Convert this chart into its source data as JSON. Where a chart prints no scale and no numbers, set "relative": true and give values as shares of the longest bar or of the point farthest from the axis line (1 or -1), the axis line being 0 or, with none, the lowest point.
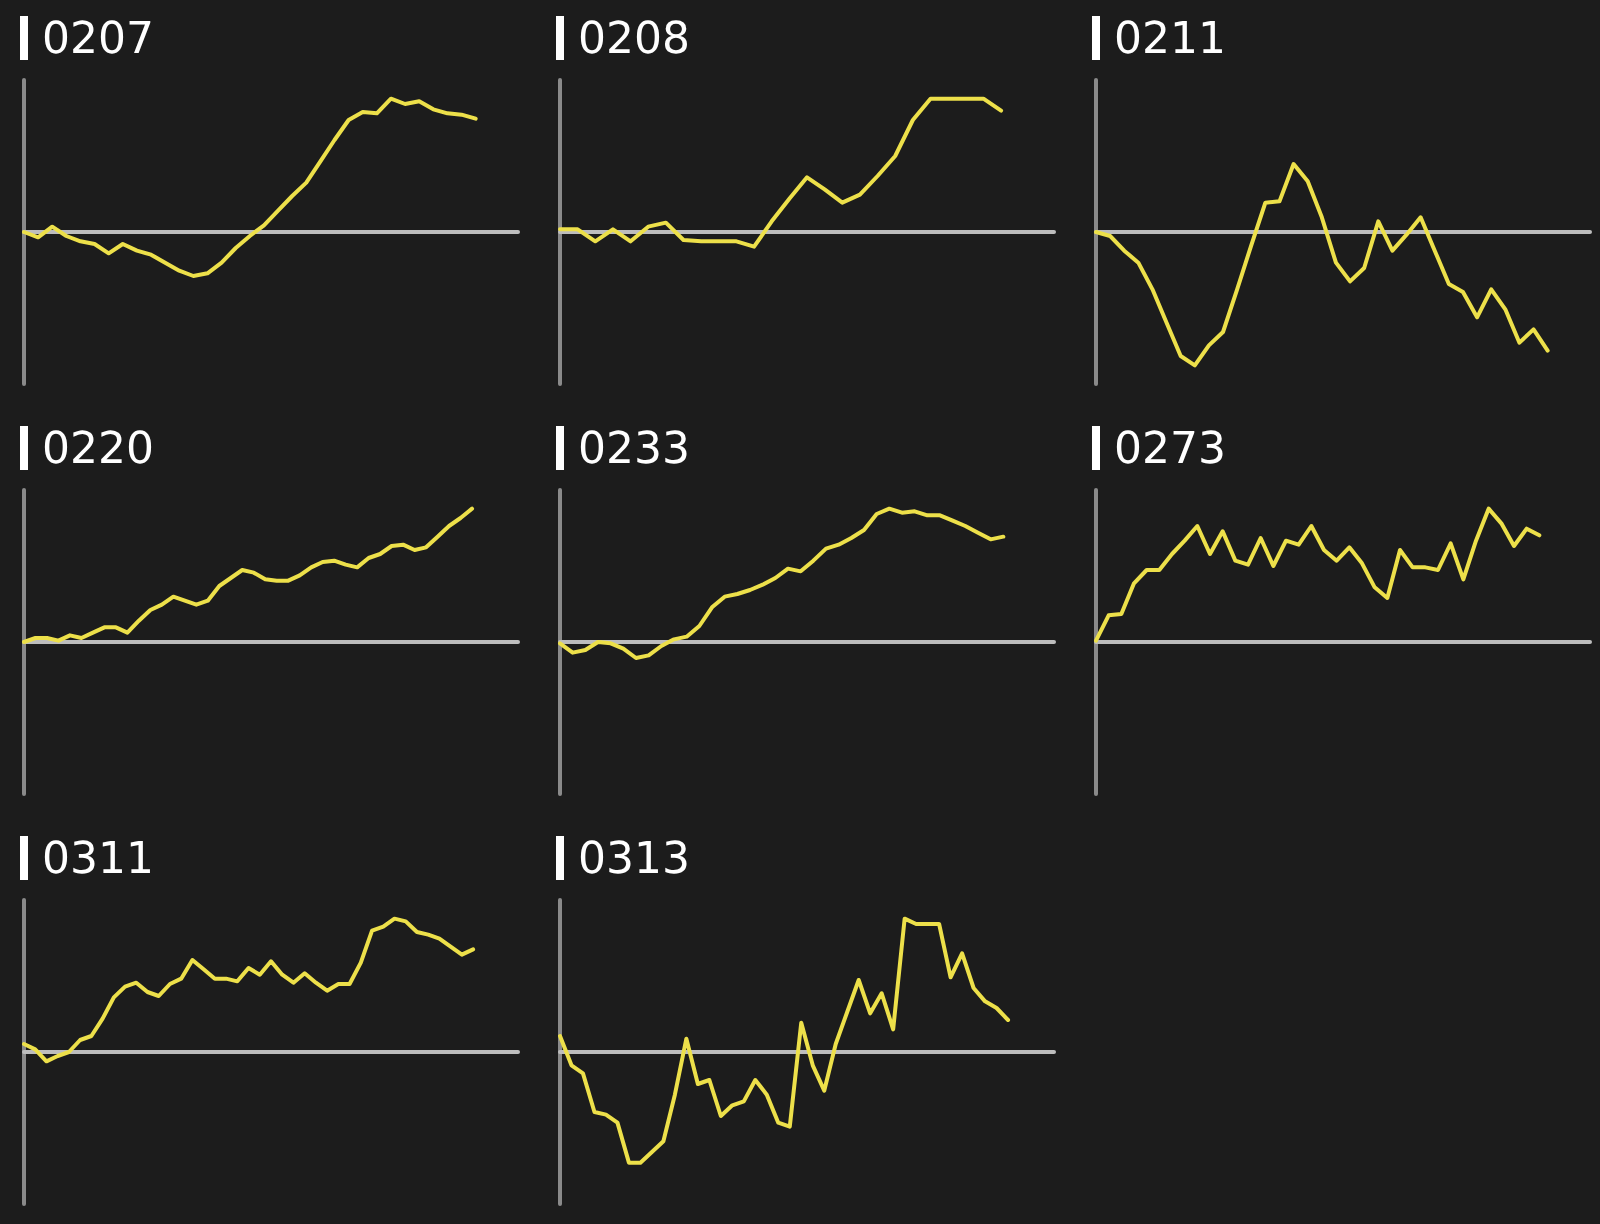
{
  "chart_data": [
    {
      "type": "line",
      "title": "0207",
      "relative": true,
      "color": "#ede04a",
      "categories": [
        null,
        null,
        null,
        null,
        null,
        null,
        null,
        null,
        null,
        null,
        null,
        null,
        null,
        null,
        null,
        null,
        null,
        null,
        null,
        null,
        null,
        null,
        null,
        null,
        null,
        null,
        null,
        null,
        null,
        null,
        null,
        null,
        null
      ],
      "values": [
        0,
        -0.04,
        0.04,
        -0.03,
        -0.07,
        -0.09,
        -0.16,
        -0.09,
        -0.14,
        -0.17,
        -0.23,
        -0.29,
        -0.33,
        -0.31,
        -0.23,
        -0.12,
        -0.03,
        0.05,
        0.16,
        0.27,
        0.37,
        0.53,
        0.69,
        0.84,
        0.9,
        0.89,
        1,
        0.96,
        0.98,
        0.92,
        0.89,
        0.88,
        0.85
      ]
    },
    {
      "type": "line",
      "title": "0208",
      "relative": true,
      "color": "#ede04a",
      "categories": [
        null,
        null,
        null,
        null,
        null,
        null,
        null,
        null,
        null,
        null,
        null,
        null,
        null,
        null,
        null,
        null,
        null,
        null,
        null,
        null,
        null,
        null,
        null,
        null,
        null,
        null
      ],
      "values": [
        0.02,
        0.02,
        -0.07,
        0.02,
        -0.07,
        0.04,
        0.07,
        -0.06,
        -0.07,
        -0.07,
        -0.07,
        -0.11,
        0.08,
        0.25,
        0.41,
        0.32,
        0.22,
        0.28,
        0.42,
        0.57,
        0.84,
        1,
        1,
        1,
        1,
        0.91
      ]
    },
    {
      "type": "line",
      "title": "0211",
      "relative": true,
      "color": "#ede04a",
      "categories": [
        null,
        null,
        null,
        null,
        null,
        null,
        null,
        null,
        null,
        null,
        null,
        null,
        null,
        null,
        null,
        null,
        null,
        null,
        null,
        null,
        null,
        null,
        null,
        null,
        null,
        null,
        null,
        null,
        null,
        null,
        null,
        null,
        null
      ],
      "values": [
        0,
        -0.03,
        -0.14,
        -0.23,
        -0.43,
        -0.68,
        -0.93,
        -1,
        -0.85,
        -0.75,
        -0.43,
        -0.1,
        0.22,
        0.23,
        0.51,
        0.38,
        0.11,
        -0.23,
        -0.37,
        -0.27,
        0.08,
        -0.14,
        -0.02,
        0.11,
        -0.14,
        -0.39,
        -0.45,
        -0.64,
        -0.43,
        -0.58,
        -0.83,
        -0.73,
        -0.89
      ]
    },
    {
      "type": "line",
      "title": "0220",
      "relative": true,
      "color": "#ede04a",
      "categories": [
        null,
        null,
        null,
        null,
        null,
        null,
        null,
        null,
        null,
        null,
        null,
        null,
        null,
        null,
        null,
        null,
        null,
        null,
        null,
        null,
        null,
        null,
        null,
        null,
        null,
        null,
        null,
        null,
        null,
        null,
        null,
        null,
        null,
        null,
        null,
        null,
        null,
        null,
        null,
        null
      ],
      "values": [
        0,
        0.03,
        0.03,
        0.01,
        0.05,
        0.03,
        0.07,
        0.11,
        0.11,
        0.07,
        0.16,
        0.24,
        0.28,
        0.34,
        0.31,
        0.28,
        0.31,
        0.42,
        0.48,
        0.54,
        0.52,
        0.47,
        0.46,
        0.46,
        0.5,
        0.56,
        0.6,
        0.61,
        0.58,
        0.56,
        0.63,
        0.66,
        0.72,
        0.73,
        0.69,
        0.71,
        0.79,
        0.87,
        0.93,
        1
      ]
    },
    {
      "type": "line",
      "title": "0233",
      "relative": true,
      "color": "#ede04a",
      "categories": [
        null,
        null,
        null,
        null,
        null,
        null,
        null,
        null,
        null,
        null,
        null,
        null,
        null,
        null,
        null,
        null,
        null,
        null,
        null,
        null,
        null,
        null,
        null,
        null,
        null,
        null,
        null,
        null,
        null,
        null,
        null,
        null,
        null,
        null,
        null,
        null
      ],
      "values": [
        -0.01,
        -0.08,
        -0.06,
        0,
        -0.01,
        -0.05,
        -0.12,
        -0.1,
        -0.03,
        0.02,
        0.04,
        0.12,
        0.26,
        0.34,
        0.36,
        0.39,
        0.43,
        0.48,
        0.55,
        0.53,
        0.61,
        0.7,
        0.73,
        0.78,
        0.84,
        0.96,
        1,
        0.97,
        0.98,
        0.95,
        0.95,
        0.91,
        0.87,
        0.82,
        0.77,
        0.79
      ]
    },
    {
      "type": "line",
      "title": "0273",
      "relative": true,
      "color": "#ede04a",
      "categories": [
        null,
        null,
        null,
        null,
        null,
        null,
        null,
        null,
        null,
        null,
        null,
        null,
        null,
        null,
        null,
        null,
        null,
        null,
        null,
        null,
        null,
        null,
        null,
        null,
        null,
        null,
        null,
        null,
        null,
        null,
        null,
        null,
        null,
        null,
        null,
        null
      ],
      "values": [
        0.01,
        0.2,
        0.21,
        0.44,
        0.54,
        0.54,
        0.66,
        0.76,
        0.87,
        0.66,
        0.83,
        0.61,
        0.58,
        0.78,
        0.57,
        0.76,
        0.73,
        0.87,
        0.69,
        0.61,
        0.71,
        0.59,
        0.41,
        0.33,
        0.69,
        0.56,
        0.56,
        0.54,
        0.74,
        0.47,
        0.76,
        1,
        0.89,
        0.72,
        0.85,
        0.8
      ]
    },
    {
      "type": "line",
      "title": "0311",
      "relative": true,
      "color": "#ede04a",
      "categories": [
        null,
        null,
        null,
        null,
        null,
        null,
        null,
        null,
        null,
        null,
        null,
        null,
        null,
        null,
        null,
        null,
        null,
        null,
        null,
        null,
        null,
        null,
        null,
        null,
        null,
        null,
        null,
        null,
        null,
        null,
        null,
        null,
        null,
        null,
        null,
        null,
        null,
        null,
        null,
        null,
        null
      ],
      "values": [
        0.06,
        0.02,
        -0.07,
        -0.03,
        0,
        0.09,
        0.12,
        0.25,
        0.41,
        0.49,
        0.52,
        0.45,
        0.42,
        0.51,
        0.55,
        0.69,
        0.62,
        0.55,
        0.55,
        0.53,
        0.63,
        0.58,
        0.68,
        0.58,
        0.52,
        0.59,
        0.52,
        0.46,
        0.51,
        0.51,
        0.67,
        0.91,
        0.94,
        1,
        0.98,
        0.9,
        0.88,
        0.85,
        0.79,
        0.73,
        0.77
      ]
    },
    {
      "type": "line",
      "title": "0313",
      "relative": true,
      "color": "#ede04a",
      "categories": [
        null,
        null,
        null,
        null,
        null,
        null,
        null,
        null,
        null,
        null,
        null,
        null,
        null,
        null,
        null,
        null,
        null,
        null,
        null,
        null,
        null,
        null,
        null,
        null,
        null,
        null,
        null,
        null,
        null,
        null,
        null,
        null,
        null,
        null,
        null,
        null,
        null,
        null,
        null,
        null
      ],
      "values": [
        0.12,
        -0.1,
        -0.16,
        -0.45,
        -0.47,
        -0.53,
        -0.83,
        -0.83,
        -0.75,
        -0.67,
        -0.32,
        0.1,
        -0.24,
        -0.21,
        -0.48,
        -0.4,
        -0.37,
        -0.21,
        -0.32,
        -0.53,
        -0.56,
        0.22,
        -0.1,
        -0.29,
        0.06,
        0.3,
        0.54,
        0.29,
        0.44,
        0.17,
        1,
        0.96,
        0.96,
        0.96,
        0.56,
        0.74,
        0.48,
        0.38,
        0.33,
        0.24
      ]
    }
  ]
}
